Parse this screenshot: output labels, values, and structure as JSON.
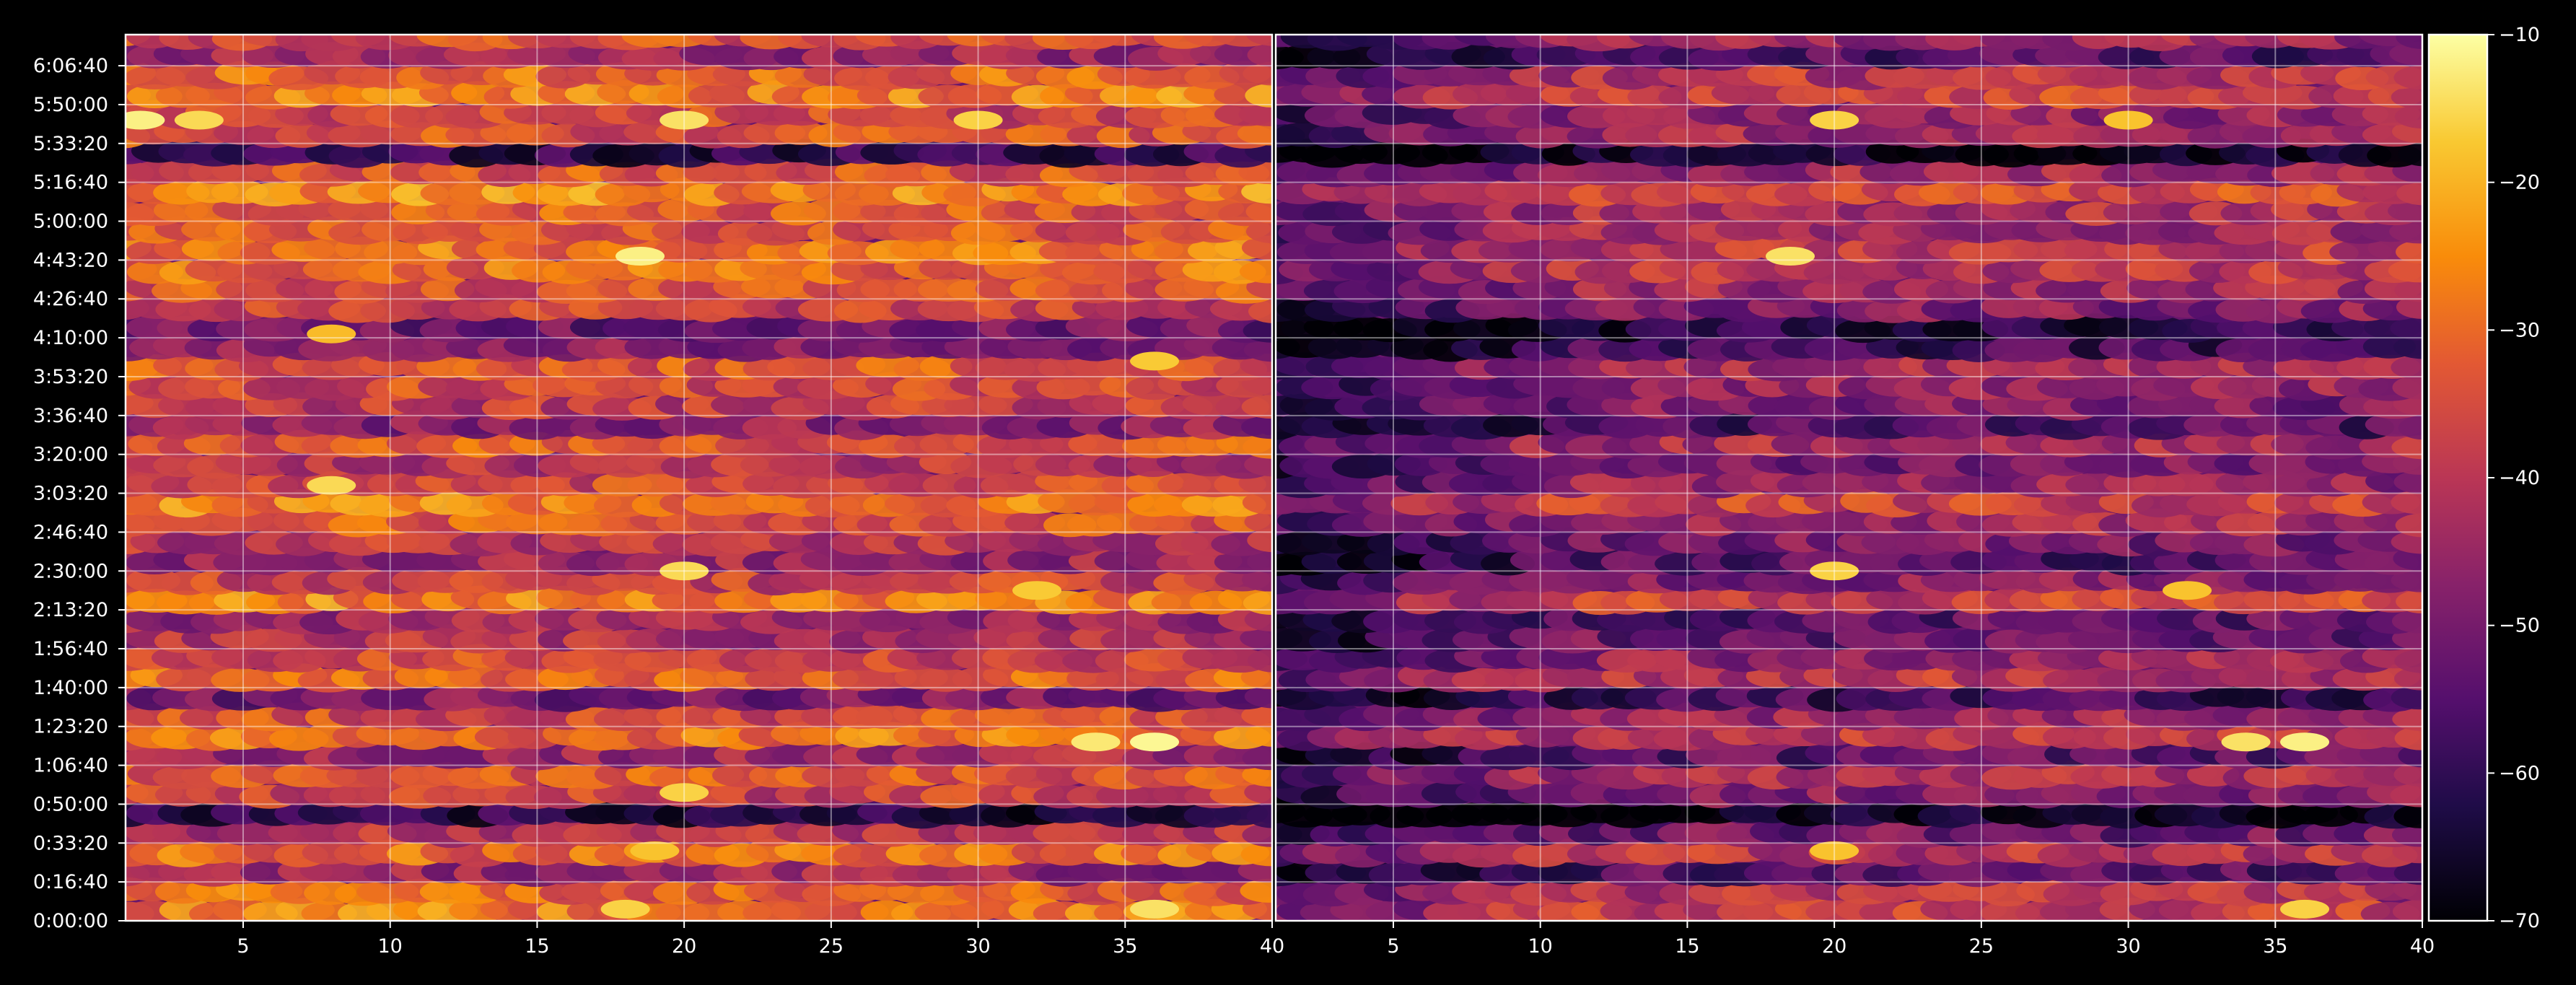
{
  "chart_data": {
    "type": "heatmap",
    "title": "",
    "background": "#000000",
    "colormap": "inferno",
    "panels": [
      {
        "name": "",
        "xlabel": "",
        "ylabel": "",
        "xlim": [
          1,
          40
        ],
        "ylim": [
          0,
          22800
        ],
        "x_ticks": [
          5,
          10,
          15,
          20,
          25,
          30,
          35,
          40
        ],
        "x_tick_labels": [
          "5",
          "10",
          "15",
          "20",
          "25",
          "30",
          "35",
          "40"
        ]
      },
      {
        "name": "",
        "xlabel": "",
        "ylabel": "",
        "xlim": [
          1,
          40
        ],
        "ylim": [
          0,
          22800
        ],
        "x_ticks": [
          5,
          10,
          15,
          20,
          25,
          30,
          35,
          40
        ],
        "x_tick_labels": [
          "5",
          "10",
          "15",
          "20",
          "25",
          "30",
          "35",
          "40"
        ]
      }
    ],
    "y_ticks": [
      0,
      1000,
      2000,
      3000,
      4000,
      5000,
      6000,
      7000,
      8000,
      9000,
      10000,
      11000,
      12000,
      13000,
      14000,
      15000,
      16000,
      17000,
      18000,
      19000,
      20000,
      21000,
      22000
    ],
    "y_tick_labels": [
      "0:00:00",
      "0:16:40",
      "0:33:20",
      "0:50:00",
      "1:06:40",
      "1:23:20",
      "1:40:00",
      "1:56:40",
      "2:13:20",
      "2:30:00",
      "2:46:40",
      "3:03:20",
      "3:20:00",
      "3:36:40",
      "3:53:20",
      "4:10:00",
      "4:26:40",
      "4:43:20",
      "5:00:00",
      "5:16:40",
      "5:33:20",
      "5:50:00",
      "6:06:40"
    ],
    "grid": true,
    "colorbar": {
      "range": [
        -70,
        -10
      ],
      "ticks": [
        -10,
        -20,
        -30,
        -40,
        -50,
        -60,
        -70
      ],
      "tick_labels": [
        "−10",
        "−20",
        "−30",
        "−40",
        "−50",
        "−60",
        "−70"
      ]
    },
    "time_bins": {
      "start": 0,
      "step": 500,
      "count": 46,
      "panel_1_mean": [
        -28,
        -31,
        -45,
        -30,
        -41,
        -62,
        -38,
        -33,
        -44,
        -29,
        -35,
        -50,
        -30,
        -36,
        -42,
        -44,
        -27,
        -38,
        -45,
        -40,
        -33,
        -27,
        -36,
        -40,
        -33,
        -47,
        -39,
        -36,
        -33,
        -48,
        -52,
        -38,
        -34,
        -30,
        -29,
        -34,
        -32,
        -26,
        -34,
        -60,
        -34,
        -36,
        -27,
        -30,
        -45,
        -35
      ],
      "panel_2_mean": [
        -38,
        -41,
        -55,
        -40,
        -51,
        -68,
        -48,
        -43,
        -54,
        -39,
        -45,
        -58,
        -40,
        -46,
        -52,
        -54,
        -37,
        -48,
        -55,
        -50,
        -43,
        -37,
        -46,
        -50,
        -43,
        -56,
        -49,
        -46,
        -43,
        -58,
        -62,
        -48,
        -44,
        -40,
        -39,
        -44,
        -42,
        -36,
        -44,
        -66,
        -44,
        -46,
        -37,
        -40,
        -55,
        -45
      ]
    },
    "hotspots": [
      {
        "panel": 1,
        "x": 1.5,
        "y": 20600,
        "value": -12
      },
      {
        "panel": 1,
        "x": 3.5,
        "y": 20600,
        "value": -15
      },
      {
        "panel": 1,
        "x": 20,
        "y": 20600,
        "value": -14
      },
      {
        "panel": 1,
        "x": 30,
        "y": 20600,
        "value": -16
      },
      {
        "panel": 1,
        "x": 18.5,
        "y": 17100,
        "value": -12
      },
      {
        "panel": 1,
        "x": 8,
        "y": 15100,
        "value": -19
      },
      {
        "panel": 1,
        "x": 36,
        "y": 14400,
        "value": -17
      },
      {
        "panel": 1,
        "x": 8,
        "y": 11200,
        "value": -15
      },
      {
        "panel": 1,
        "x": 20,
        "y": 9000,
        "value": -15
      },
      {
        "panel": 1,
        "x": 32,
        "y": 8500,
        "value": -17
      },
      {
        "panel": 1,
        "x": 36,
        "y": 4600,
        "value": -11
      },
      {
        "panel": 1,
        "x": 34,
        "y": 4600,
        "value": -13
      },
      {
        "panel": 1,
        "x": 20,
        "y": 3300,
        "value": -16
      },
      {
        "panel": 1,
        "x": 19,
        "y": 1800,
        "value": -18
      },
      {
        "panel": 1,
        "x": 36,
        "y": 300,
        "value": -14
      },
      {
        "panel": 1,
        "x": 18,
        "y": 300,
        "value": -16
      },
      {
        "panel": 2,
        "x": 20,
        "y": 20600,
        "value": -16
      },
      {
        "panel": 2,
        "x": 30,
        "y": 20600,
        "value": -18
      },
      {
        "panel": 2,
        "x": 18.5,
        "y": 17100,
        "value": -14
      },
      {
        "panel": 2,
        "x": 20,
        "y": 9000,
        "value": -16
      },
      {
        "panel": 2,
        "x": 32,
        "y": 8500,
        "value": -18
      },
      {
        "panel": 2,
        "x": 36,
        "y": 4600,
        "value": -12
      },
      {
        "panel": 2,
        "x": 34,
        "y": 4600,
        "value": -14
      },
      {
        "panel": 2,
        "x": 20,
        "y": 1800,
        "value": -18
      },
      {
        "panel": 2,
        "x": 36,
        "y": 300,
        "value": -16
      }
    ]
  }
}
